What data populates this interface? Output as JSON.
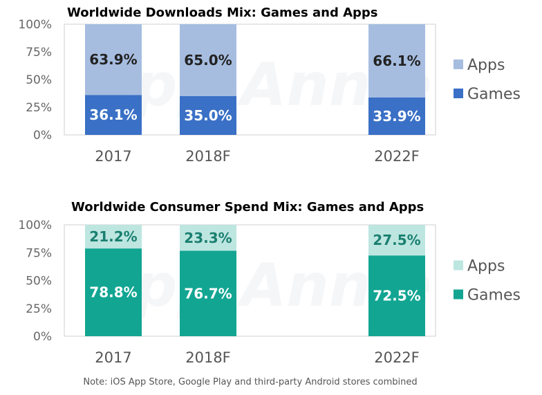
{
  "watermark": "App Annie",
  "note": "Note: iOS App Store, Google Play and third-party Android stores combined",
  "chart_data": [
    {
      "type": "bar",
      "stacked": true,
      "title": "Worldwide Downloads Mix: Games and Apps",
      "categories": [
        "2017",
        "2018F",
        "2022F"
      ],
      "yticks": [
        "0%",
        "25%",
        "50%",
        "75%",
        "100%"
      ],
      "ylim": [
        0,
        100
      ],
      "grid": false,
      "legend_position": "right",
      "series": [
        {
          "name": "Games",
          "values": [
            36.1,
            35.0,
            33.9
          ],
          "labels": [
            "36.1%",
            "35.0%",
            "33.9%"
          ],
          "color": "#3a70c6",
          "label_color": "#ffffff"
        },
        {
          "name": "Apps",
          "values": [
            63.9,
            65.0,
            66.1
          ],
          "labels": [
            "63.9%",
            "65.0%",
            "66.1%"
          ],
          "color": "#a6bde0",
          "label_color": "#222222"
        }
      ]
    },
    {
      "type": "bar",
      "stacked": true,
      "title": "Worldwide Consumer Spend Mix: Games and Apps",
      "categories": [
        "2017",
        "2018F",
        "2022F"
      ],
      "yticks": [
        "0%",
        "25%",
        "50%",
        "75%",
        "100%"
      ],
      "ylim": [
        0,
        100
      ],
      "grid": false,
      "legend_position": "right",
      "series": [
        {
          "name": "Games",
          "values": [
            78.8,
            76.7,
            72.5
          ],
          "labels": [
            "78.8%",
            "76.7%",
            "72.5%"
          ],
          "color": "#12a592",
          "label_color": "#ffffff"
        },
        {
          "name": "Apps",
          "values": [
            21.2,
            23.3,
            27.5
          ],
          "labels": [
            "21.2%",
            "23.3%",
            "27.5%"
          ],
          "color": "#bde6e0",
          "label_color": "#1a7f70"
        }
      ]
    }
  ]
}
